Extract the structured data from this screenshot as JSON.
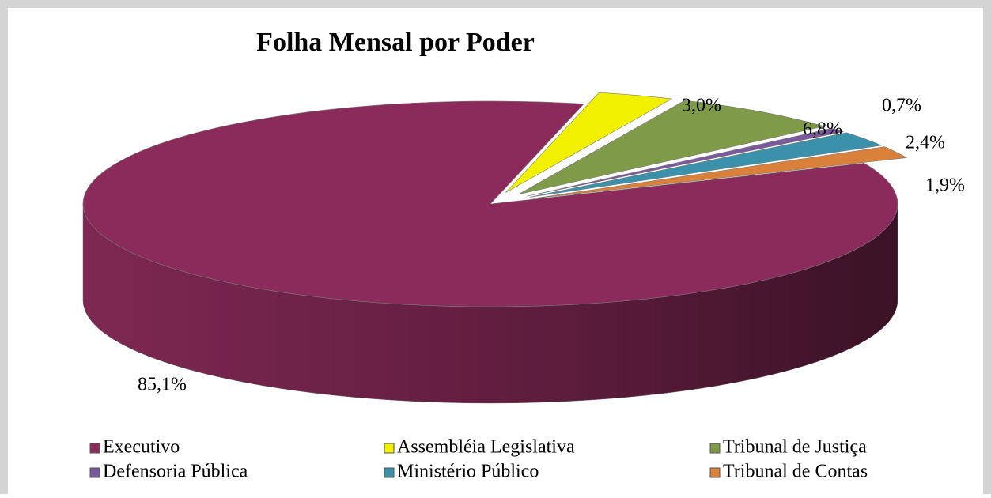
{
  "chart_data": {
    "type": "pie3d",
    "title": "Folha Mensal por Poder",
    "categories": [
      "Executivo",
      "Assembléia Legislativa",
      "Tribunal de Justiça",
      "Defensoria Pública",
      "Ministério Público",
      "Tribunal de Contas"
    ],
    "values": [
      85.1,
      3.0,
      6.8,
      0.7,
      2.4,
      1.9
    ],
    "value_labels": [
      "85,1%",
      "3,0%",
      "6,8%",
      "0,7%",
      "2,4%",
      "1,9%"
    ],
    "colors": [
      "#8b2b5b",
      "#f0f000",
      "#7f9a48",
      "#7a5a9c",
      "#3b90aa",
      "#d9803a"
    ],
    "legend": "bottom"
  }
}
